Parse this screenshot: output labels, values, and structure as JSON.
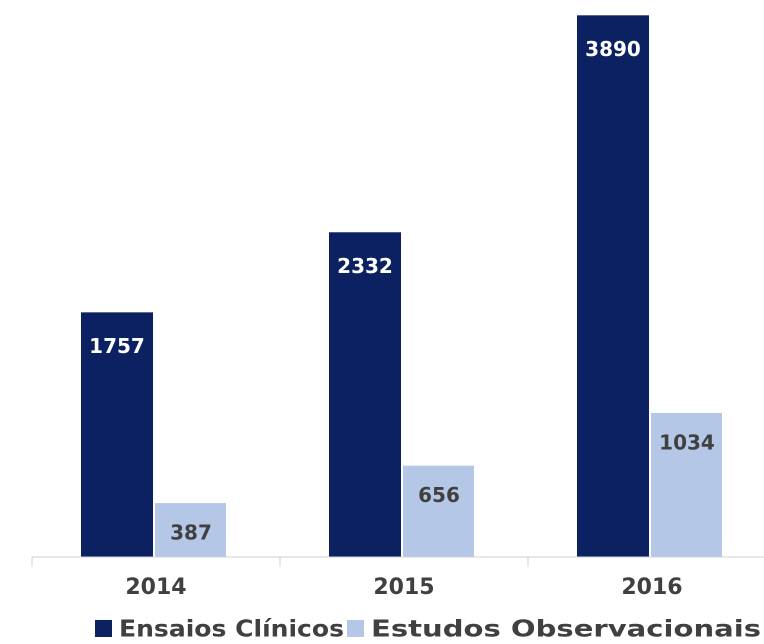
{
  "chart_data": {
    "type": "bar",
    "categories": [
      "2014",
      "2015",
      "2016"
    ],
    "series": [
      {
        "name": "Ensaios Clínicos",
        "color": "#0c2161",
        "values": [
          1757,
          2332,
          3890
        ]
      },
      {
        "name": "Estudos Observacionais",
        "color": "#b4c7e7",
        "values": [
          387,
          656,
          1034
        ]
      }
    ],
    "ylim": [
      0,
      4000
    ],
    "legend": "bottom"
  }
}
